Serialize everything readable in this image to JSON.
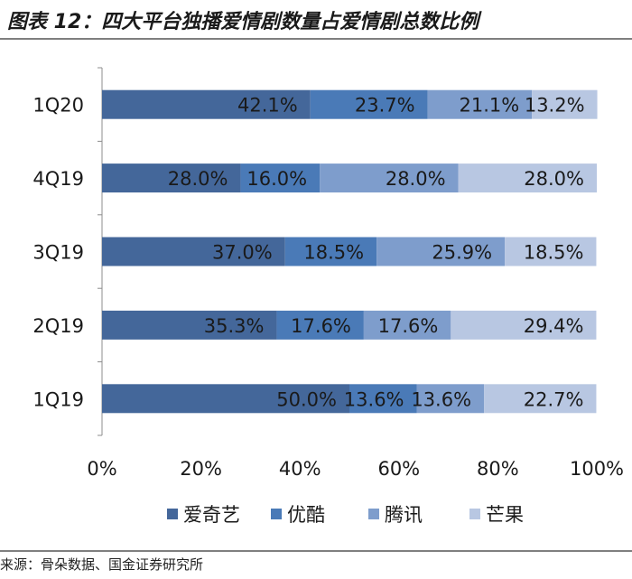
{
  "header": {
    "title": "图表 12：四大平台独播爱情剧数量占爱情剧总数比例"
  },
  "footer": {
    "source": "来源：骨朵数据、国金证券研究所"
  },
  "chart_data": {
    "type": "bar",
    "orientation": "horizontal",
    "stacked": "percent",
    "categories": [
      "1Q20",
      "4Q19",
      "3Q19",
      "2Q19",
      "1Q19"
    ],
    "series": [
      {
        "name": "爱奇艺",
        "color": "#44679a",
        "values": [
          42.1,
          28.0,
          37.0,
          35.3,
          50.0
        ],
        "labels": [
          "42.1%",
          "28.0%",
          "37.0%",
          "35.3%",
          "50.0%"
        ]
      },
      {
        "name": "优酷",
        "color": "#4a7ab7",
        "values": [
          23.7,
          16.0,
          18.5,
          17.6,
          13.6
        ],
        "labels": [
          "23.7%",
          "16.0%",
          "18.5%",
          "17.6%",
          "13.6%"
        ]
      },
      {
        "name": "腾讯",
        "color": "#7e9dcc",
        "values": [
          21.1,
          28.0,
          25.9,
          17.6,
          13.6
        ],
        "labels": [
          "21.1%",
          "28.0%",
          "25.9%",
          "17.6%",
          "13.6%"
        ]
      },
      {
        "name": "芒果",
        "color": "#b8c7e2",
        "values": [
          13.2,
          28.0,
          18.5,
          29.4,
          22.7
        ],
        "labels": [
          "13.2%",
          "28.0%",
          "18.5%",
          "29.4%",
          "22.7%"
        ]
      }
    ],
    "xlim": [
      0,
      100
    ],
    "xticks": [
      "0%",
      "20%",
      "40%",
      "60%",
      "80%",
      "100%"
    ],
    "grid": false,
    "legend_position": "bottom"
  }
}
